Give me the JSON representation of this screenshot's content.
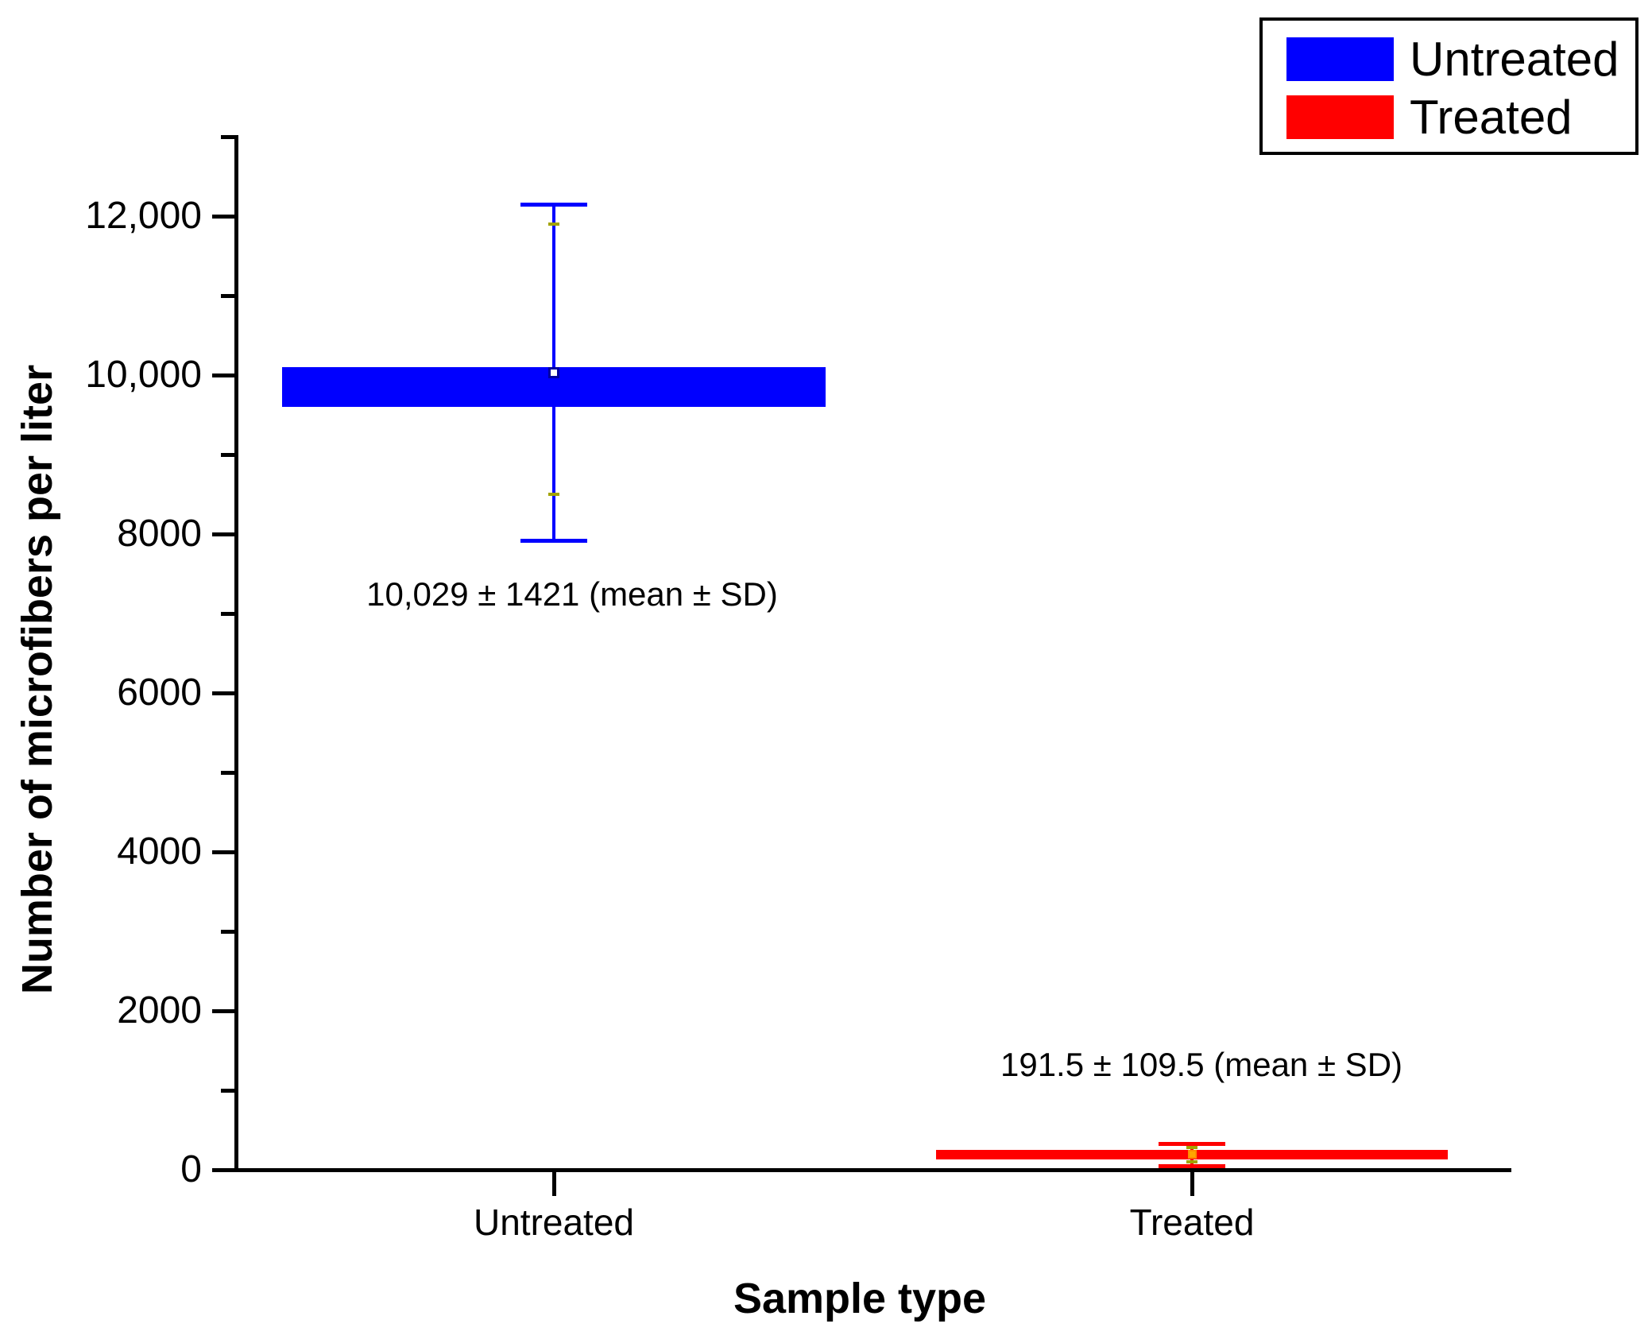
{
  "figure": {
    "background": "#FFFFFF"
  },
  "colors": {
    "axis": "#000000",
    "untreated": "#0000FF",
    "treated": "#FF0000",
    "percentile_dash": "#A3A300",
    "untreated_mean_fill": "#FFFFFF",
    "untreated_mean_border": "#0000A0",
    "treated_mean_fill": "#FFA500",
    "treated_mean_border": "#FF8C00"
  },
  "y_axis": {
    "title": "Number of microfibers per liter"
  },
  "x_axis": {
    "title": "Sample type",
    "categories": [
      "Untreated",
      "Treated"
    ]
  },
  "legend": {
    "items": [
      {
        "label": "Untreated",
        "color": "#0000FF"
      },
      {
        "label": "Treated",
        "color": "#FF0000"
      }
    ]
  },
  "chart_data": {
    "type": "box",
    "title": "",
    "xlabel": "Sample type",
    "ylabel": "Number of microfibers per liter",
    "categories": [
      "Untreated",
      "Treated"
    ],
    "ylim": [
      0,
      13000
    ],
    "grid": false,
    "legend_position": "top-right",
    "yticks": [
      {
        "value": 0,
        "label": "0"
      },
      {
        "value": 2000,
        "label": "2000"
      },
      {
        "value": 4000,
        "label": "4000"
      },
      {
        "value": 6000,
        "label": "6000"
      },
      {
        "value": 8000,
        "label": "8000"
      },
      {
        "value": 10000,
        "label": "10,000"
      },
      {
        "value": 12000,
        "label": "12,000"
      }
    ],
    "minor_yticks": [
      1000,
      3000,
      5000,
      7000,
      9000,
      11000,
      13000
    ],
    "series": [
      {
        "name": "Untreated",
        "color": "#0000FF",
        "mean": 10029,
        "sd": 1421,
        "box_top": 10100,
        "box_bottom": 9600,
        "whisker_high": 12150,
        "whisker_low": 7920,
        "percentile_dashes": [
          11900,
          8500
        ],
        "mean_marker": {
          "size": 14,
          "border_width": 3,
          "fill": "#FFFFFF",
          "border": "#0000A0"
        },
        "annotation": "10,029 ± 1421 (mean ± SD)"
      },
      {
        "name": "Treated",
        "color": "#FF0000",
        "mean": 191.5,
        "sd": 109.5,
        "box_top": 250,
        "box_bottom": 135,
        "whisker_high": 330,
        "whisker_low": 50,
        "percentile_dashes": [
          280,
          100
        ],
        "mean_marker": {
          "size": 11,
          "border_width": 2,
          "fill": "#FFA500",
          "border": "#FF8C00"
        },
        "annotation": "191.5 ± 109.5 (mean ± SD)"
      }
    ]
  }
}
